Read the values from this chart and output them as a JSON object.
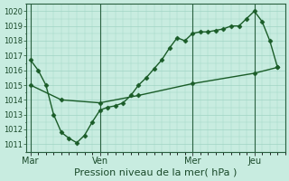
{
  "xlabel": "Pression niveau de la mer( hPa )",
  "background_color": "#c8ece0",
  "grid_color": "#a0d4c4",
  "line_color": "#1a5c28",
  "ylim": [
    1010.5,
    1020.5
  ],
  "yticks": [
    1011,
    1012,
    1013,
    1014,
    1015,
    1016,
    1017,
    1018,
    1019,
    1020
  ],
  "day_labels": [
    "Mar",
    "Ven",
    "Mer",
    "Jeu"
  ],
  "day_positions": [
    0,
    9,
    21,
    29
  ],
  "line1_x": [
    0,
    1,
    2,
    3,
    4,
    5,
    6,
    7,
    8,
    9,
    10,
    11,
    12,
    13,
    14,
    15,
    16,
    17,
    18,
    19,
    20,
    21,
    22,
    23,
    24,
    25,
    26,
    27,
    28,
    29,
    30,
    31,
    32
  ],
  "line1_y": [
    1016.7,
    1016.0,
    1015.0,
    1013.0,
    1011.8,
    1011.4,
    1011.1,
    1011.6,
    1012.5,
    1013.3,
    1013.5,
    1013.6,
    1013.8,
    1014.3,
    1015.0,
    1015.5,
    1016.1,
    1016.7,
    1017.5,
    1018.2,
    1018.0,
    1018.5,
    1018.6,
    1018.6,
    1018.7,
    1018.8,
    1019.0,
    1019.0,
    1019.5,
    1020.0,
    1019.3,
    1018.0,
    1016.2
  ],
  "line2_x": [
    0,
    4,
    9,
    14,
    21,
    29,
    32
  ],
  "line2_y": [
    1015.0,
    1014.0,
    1013.8,
    1014.3,
    1015.1,
    1015.8,
    1016.2
  ],
  "vline_positions": [
    0,
    9,
    21,
    29
  ]
}
